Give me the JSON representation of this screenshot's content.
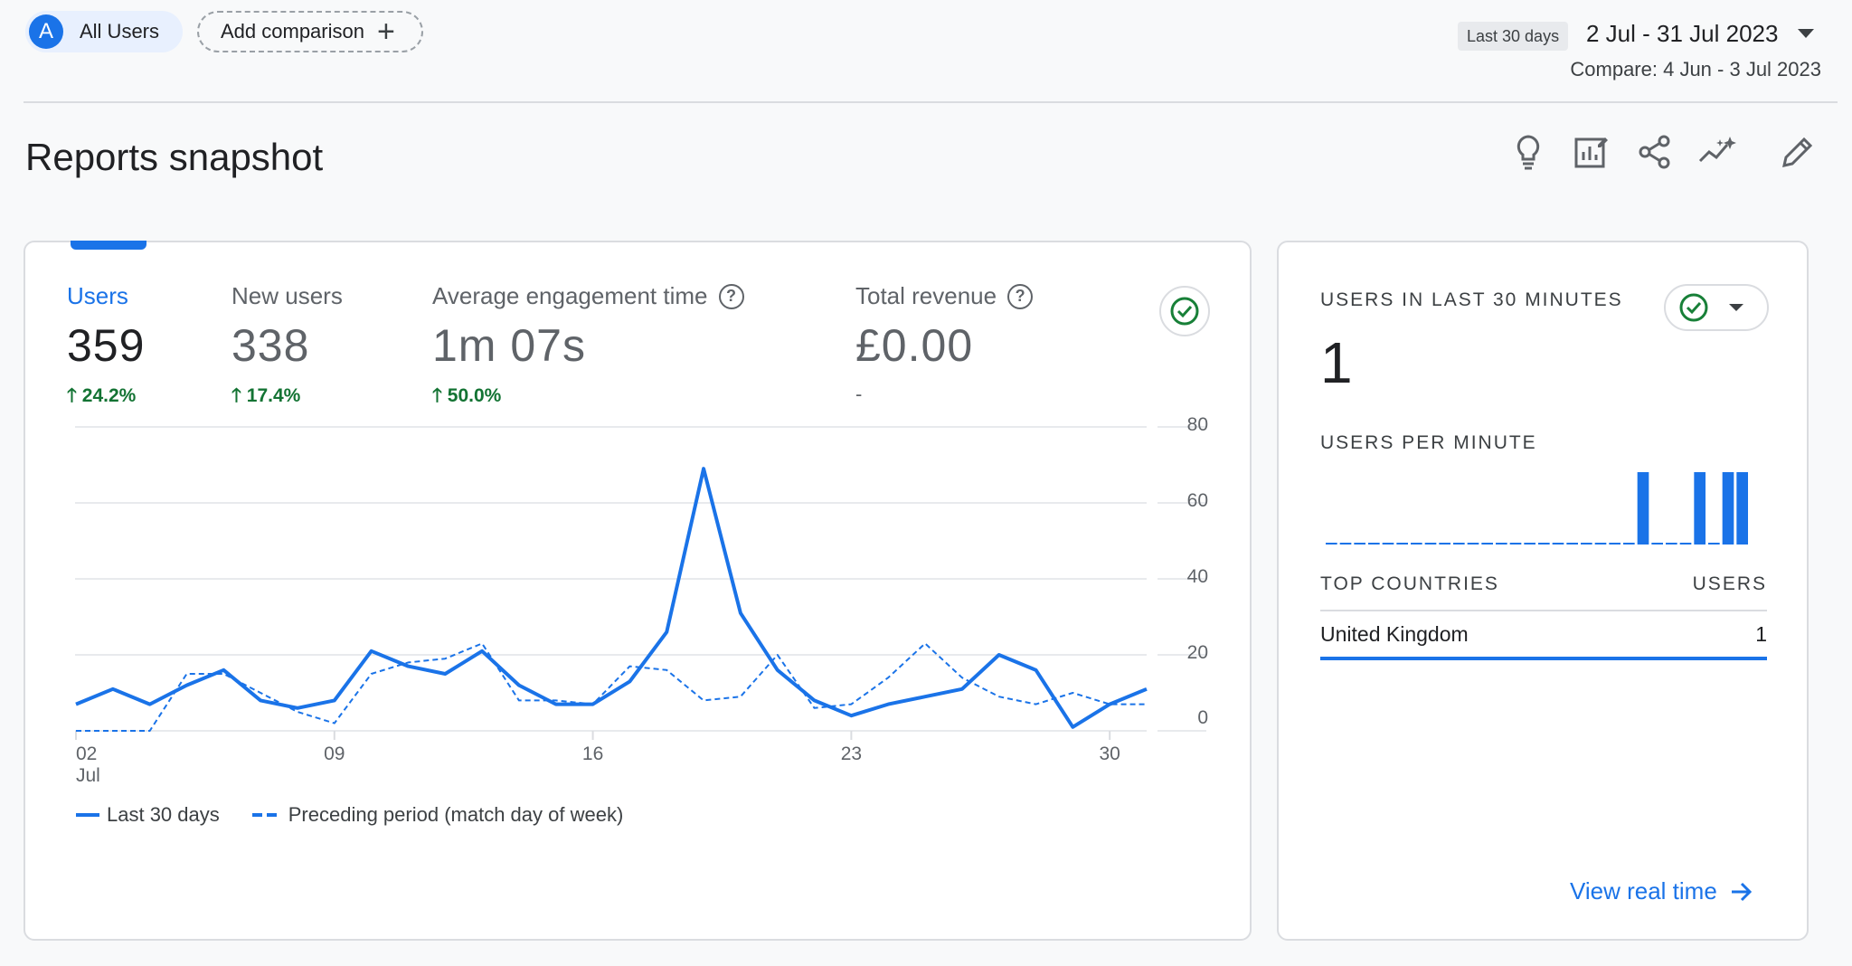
{
  "header": {
    "user_chip": {
      "avatar_letter": "A",
      "label": "All Users"
    },
    "add_comparison_label": "Add comparison",
    "date_preset": "Last 30 days",
    "date_range": "2 Jul - 31 Jul 2023",
    "compare_text": "Compare: 4 Jun - 3 Jul 2023"
  },
  "page_title": "Reports snapshot",
  "toolbar_icons": [
    "lightbulb-icon",
    "customize-report-icon",
    "share-icon",
    "insights-icon",
    "edit-icon"
  ],
  "metrics": [
    {
      "label": "Users",
      "value": "359",
      "change": "24.2%",
      "active": true
    },
    {
      "label": "New users",
      "value": "338",
      "change": "17.4%",
      "active": false
    },
    {
      "label": "Average engagement time",
      "value": "1m 07s",
      "change": "50.0%",
      "active": false,
      "help": true
    },
    {
      "label": "Total revenue",
      "value": "£0.00",
      "change": "-",
      "active": false,
      "help": true
    }
  ],
  "chart_data": {
    "type": "line",
    "x": [
      "02",
      "03",
      "04",
      "05",
      "06",
      "07",
      "08",
      "09",
      "10",
      "11",
      "12",
      "13",
      "14",
      "15",
      "16",
      "17",
      "18",
      "19",
      "20",
      "21",
      "22",
      "23",
      "24",
      "25",
      "26",
      "27",
      "28",
      "29",
      "30",
      "31"
    ],
    "x_tick_labels": [
      {
        "label": "02",
        "sub": "Jul"
      },
      {
        "label": "09",
        "sub": ""
      },
      {
        "label": "16",
        "sub": ""
      },
      {
        "label": "23",
        "sub": ""
      },
      {
        "label": "30",
        "sub": ""
      }
    ],
    "y_ticks": [
      0,
      20,
      40,
      60,
      80
    ],
    "ylim": [
      0,
      80
    ],
    "grid": true,
    "series": [
      {
        "name": "Last 30 days",
        "style": "solid",
        "values": [
          7,
          11,
          7,
          12,
          16,
          8,
          6,
          8,
          21,
          17,
          15,
          21,
          12,
          7,
          7,
          13,
          26,
          69,
          31,
          16,
          8,
          4,
          7,
          9,
          11,
          20,
          16,
          1,
          7,
          11
        ]
      },
      {
        "name": "Preceding period (match day of week)",
        "style": "dashed",
        "values": [
          0,
          0,
          0,
          15,
          15,
          10,
          5,
          2,
          15,
          18,
          19,
          23,
          8,
          8,
          7,
          17,
          16,
          8,
          9,
          20,
          6,
          7,
          14,
          23,
          14,
          9,
          7,
          10,
          7,
          7
        ]
      }
    ],
    "color": "#1a73e8"
  },
  "realtime": {
    "title": "USERS IN LAST 30 MINUTES",
    "value": "1",
    "subtitle": "USERS PER MINUTE",
    "per_minute": [
      0,
      0,
      0,
      0,
      0,
      0,
      0,
      0,
      0,
      0,
      0,
      0,
      0,
      0,
      0,
      0,
      0,
      0,
      0,
      0,
      0,
      0,
      1,
      0,
      0,
      0,
      1,
      0,
      1,
      1
    ],
    "top_countries_label": "TOP COUNTRIES",
    "users_label": "USERS",
    "countries": [
      {
        "name": "United Kingdom",
        "users": "1"
      }
    ],
    "view_label": "View real time"
  },
  "colors": {
    "accent": "#1a73e8",
    "positive": "#137333",
    "check": "#188038"
  }
}
